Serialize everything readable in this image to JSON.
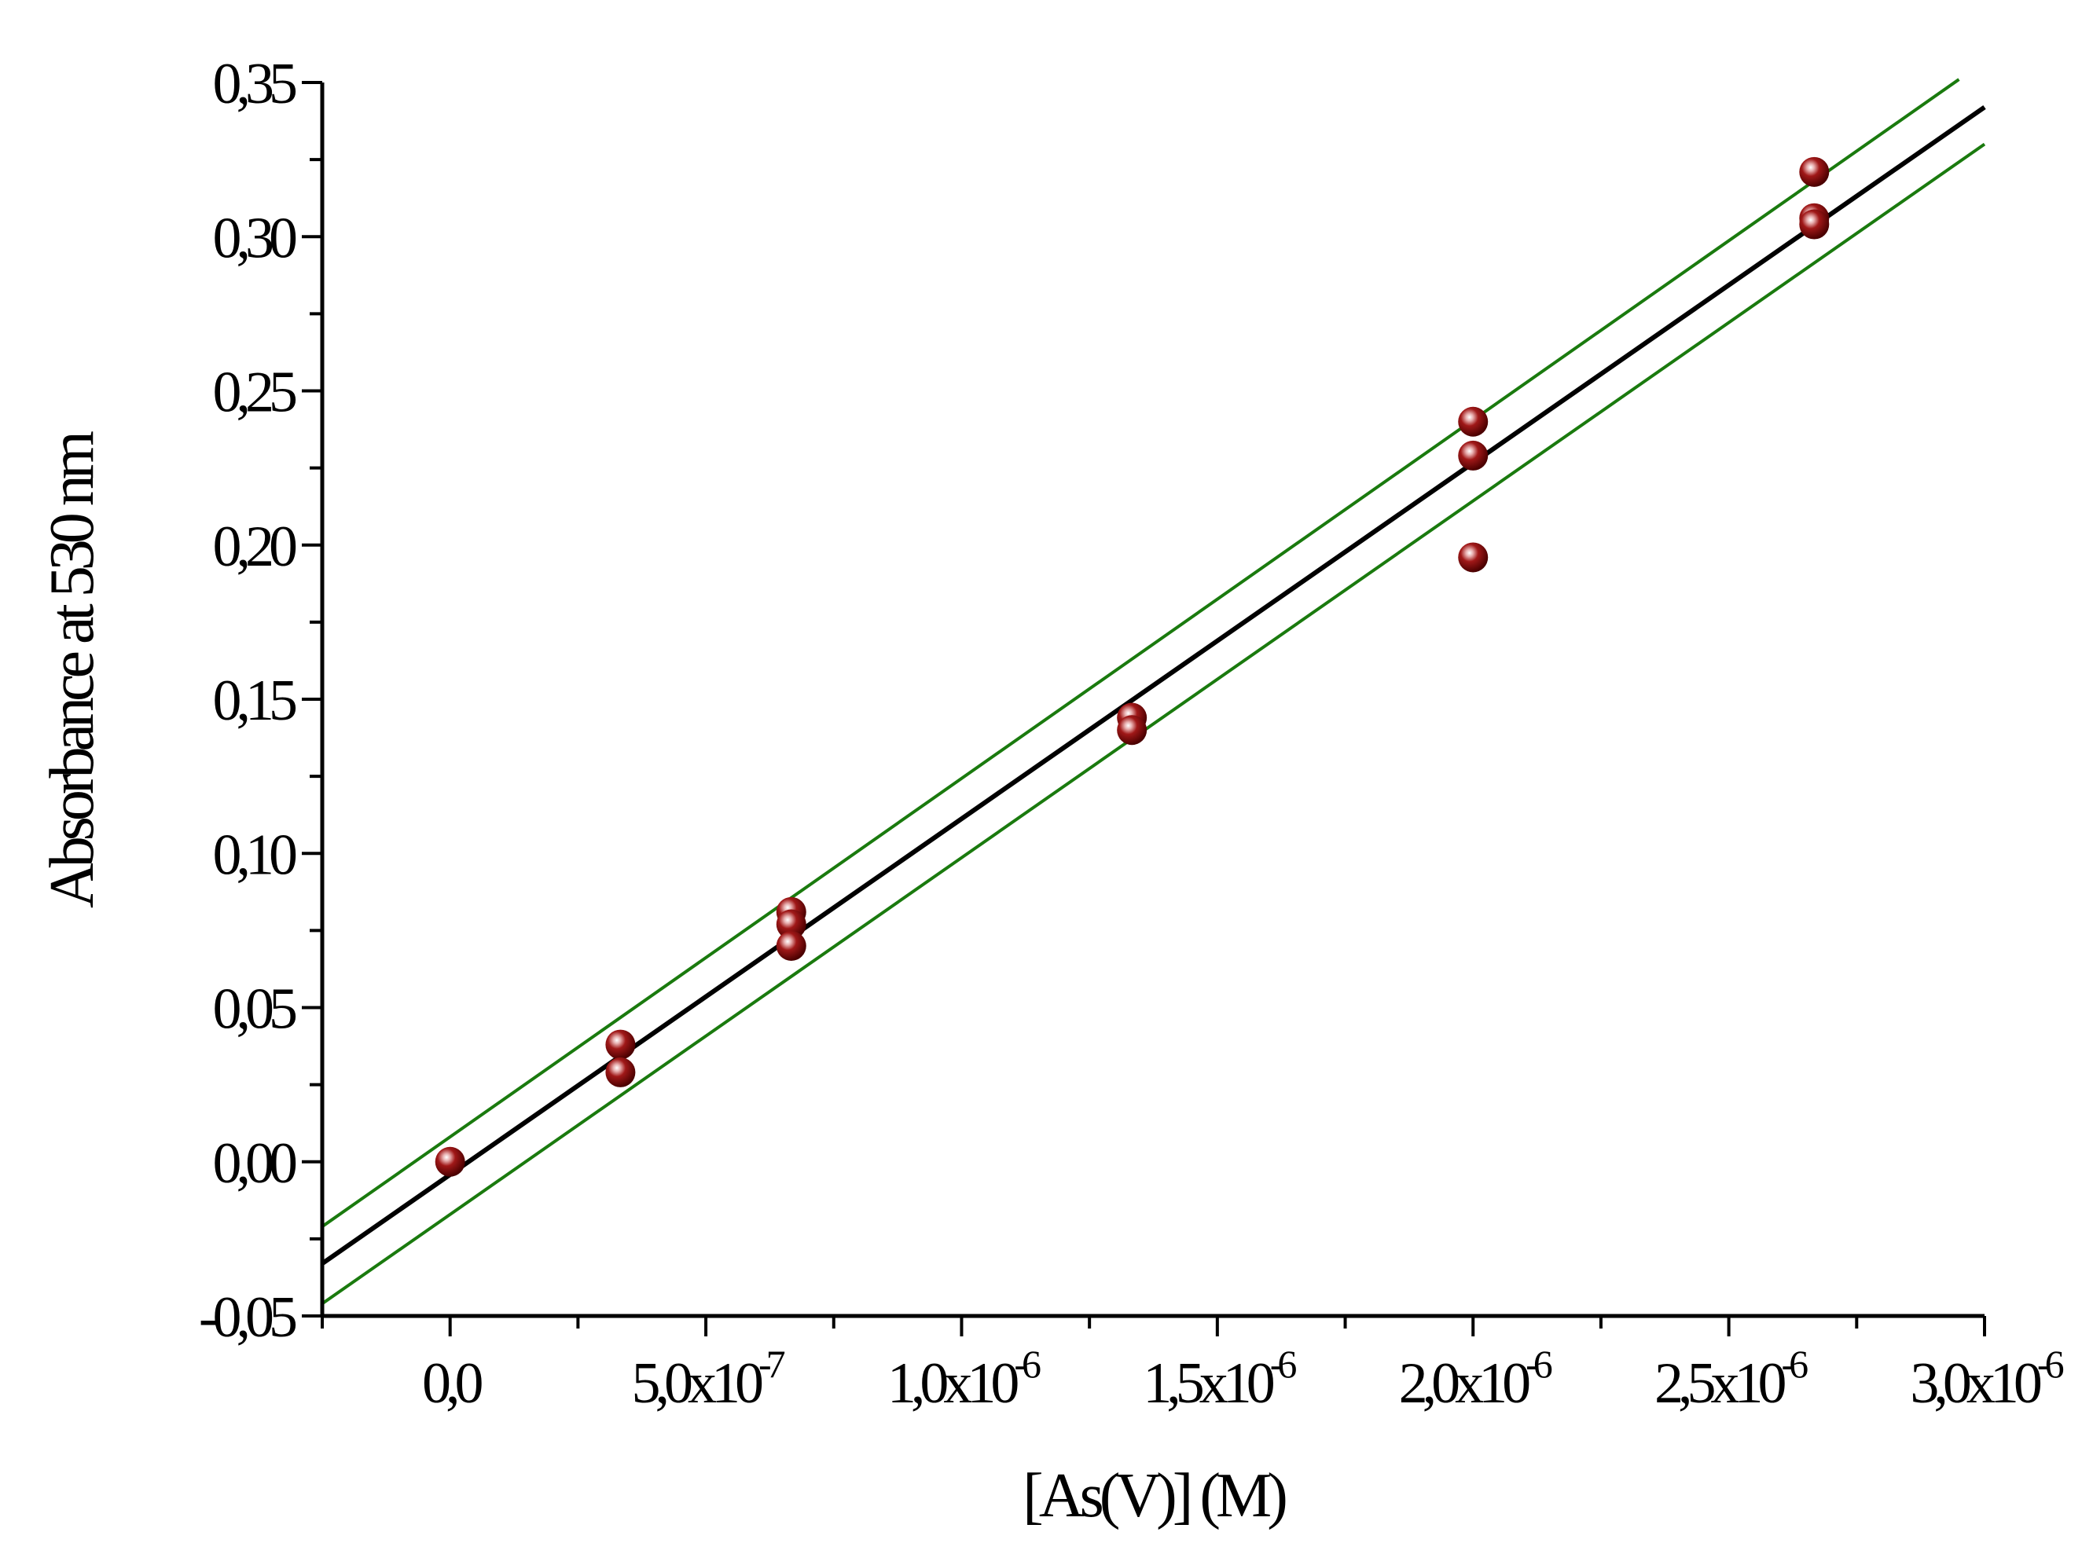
{
  "chart_data": {
    "type": "scatter",
    "title": "",
    "xlabel": "[As(V)] (M)",
    "ylabel": "Absorbance at 530 nm",
    "xlim": [
      -2.5e-07,
      3e-06
    ],
    "ylim": [
      -0.05,
      0.35
    ],
    "x_major_ticks": [
      0,
      5e-07,
      1e-06,
      1.5e-06,
      2e-06,
      2.5e-06,
      3e-06
    ],
    "x_tick_labels": [
      {
        "mantissa": "0,0",
        "exponent": ""
      },
      {
        "mantissa": "5,0x10",
        "exponent": "-7"
      },
      {
        "mantissa": "1,0x10",
        "exponent": "-6"
      },
      {
        "mantissa": "1,5x10",
        "exponent": "-6"
      },
      {
        "mantissa": "2,0x10",
        "exponent": "-6"
      },
      {
        "mantissa": "2,5x10",
        "exponent": "-6"
      },
      {
        "mantissa": "3,0x10",
        "exponent": "-6"
      }
    ],
    "y_major_ticks": [
      -0.05,
      0.0,
      0.05,
      0.1,
      0.15,
      0.2,
      0.25,
      0.3,
      0.35
    ],
    "y_tick_labels": [
      "-0,05",
      "0,00",
      "0,05",
      "0,10",
      "0,15",
      "0,20",
      "0,25",
      "0,30",
      "0,35"
    ],
    "grid": false,
    "legend": "none",
    "points": [
      {
        "x": 0.0,
        "y": 0.0
      },
      {
        "x": 3.33e-07,
        "y": 0.038
      },
      {
        "x": 3.33e-07,
        "y": 0.029
      },
      {
        "x": 6.67e-07,
        "y": 0.081
      },
      {
        "x": 6.67e-07,
        "y": 0.077
      },
      {
        "x": 6.67e-07,
        "y": 0.07
      },
      {
        "x": 1.333e-06,
        "y": 0.144
      },
      {
        "x": 1.333e-06,
        "y": 0.14
      },
      {
        "x": 2e-06,
        "y": 0.24
      },
      {
        "x": 2e-06,
        "y": 0.229
      },
      {
        "x": 2e-06,
        "y": 0.196
      },
      {
        "x": 2.667e-06,
        "y": 0.321
      },
      {
        "x": 2.667e-06,
        "y": 0.306
      },
      {
        "x": 2.667e-06,
        "y": 0.304
      }
    ],
    "fit_line": {
      "x": [
        -2.5e-07,
        3e-06
      ],
      "y": [
        -0.033,
        0.342
      ],
      "color": "#000000"
    },
    "confidence_upper": {
      "x": [
        -2.5e-07,
        2.95e-06
      ],
      "y": [
        -0.021,
        0.351
      ],
      "color": "#1a7a0e"
    },
    "confidence_lower": {
      "x": [
        -2.5e-07,
        3e-06
      ],
      "y": [
        -0.046,
        0.33
      ],
      "color": "#1a7a0e"
    },
    "marker_color": "#8b0a0a"
  }
}
